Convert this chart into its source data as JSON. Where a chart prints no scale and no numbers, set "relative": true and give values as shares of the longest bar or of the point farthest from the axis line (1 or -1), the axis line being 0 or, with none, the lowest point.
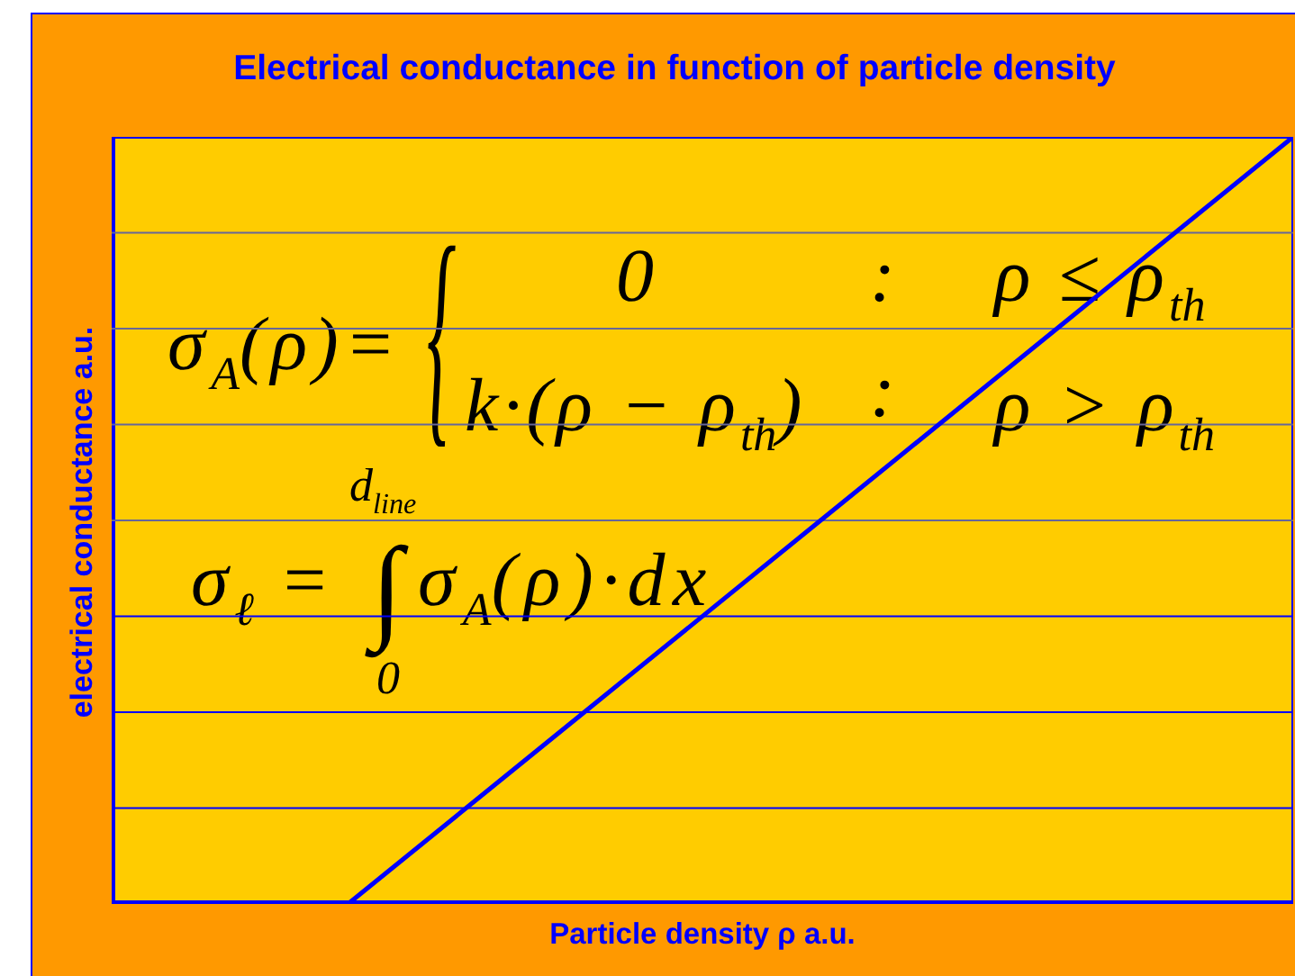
{
  "chart_data": {
    "type": "line",
    "relative": true,
    "title": "Electrical conductance in function of particle density",
    "xlabel": "Particle density ρ a.u.",
    "ylabel": "electrical conductance a.u.",
    "categories": [
      null,
      null,
      null,
      null,
      null,
      null
    ],
    "series": [
      {
        "color": "#0000ff",
        "values": [
          0,
          0,
          0.25,
          0.5,
          0.75,
          1
        ]
      }
    ],
    "ref_lines": [
      {
        "axis": "y",
        "value": 0.125,
        "color": "#0000ff"
      },
      {
        "axis": "y",
        "value": 0.25,
        "color": "#0000ff"
      },
      {
        "axis": "y",
        "value": 0.375,
        "color": "#0000ff"
      },
      {
        "axis": "y",
        "value": 0.5,
        "color": "#666699"
      },
      {
        "axis": "y",
        "value": 0.625,
        "color": "#666699"
      },
      {
        "axis": "y",
        "value": 0.75,
        "color": "#666699"
      },
      {
        "axis": "y",
        "value": 0.875,
        "color": "#666699"
      }
    ],
    "annotations": [
      "σ$_{A}$(ρ)=",
      "{",
      "0",
      ":",
      "ρ ≤ ρ$_{th}$",
      "k·(ρ − ρ$_{th}$)",
      ":",
      "ρ > ρ$_{th}$",
      "σ$_{ℓ}$ =",
      "d$_{line}$",
      "∫",
      "0",
      "σ$_{A}$(ρ)·dx"
    ]
  }
}
